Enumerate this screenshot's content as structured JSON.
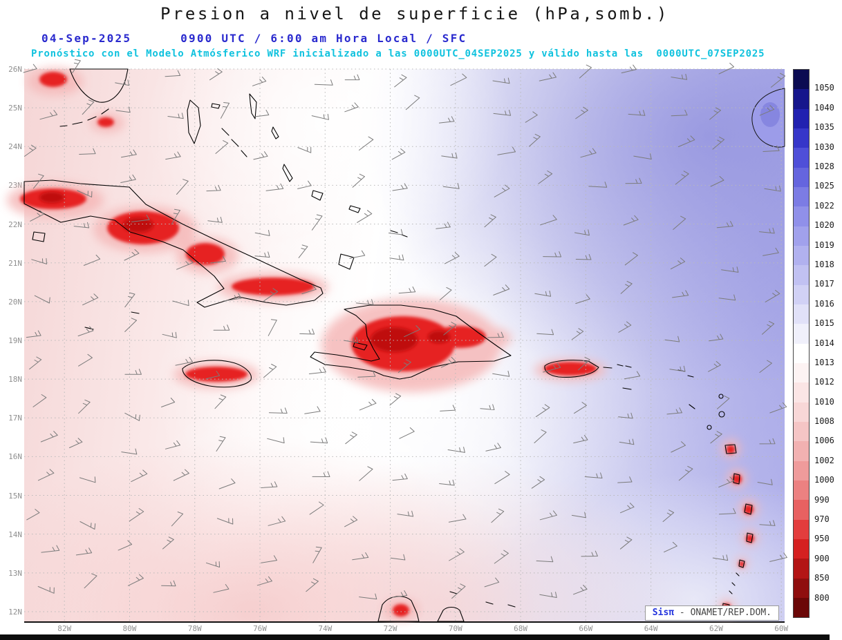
{
  "header": {
    "title": "Presion a nivel de superficie (hPa,somb.)",
    "datetime_line": "04-Sep-2025      0900 UTC / 6:00 am Hora Local / SFC",
    "forecast_line": "Pronóstico con el Modelo Atmósferico WRF inicializado a las 0000UTC_04SEP2025 y válido hasta las  0000UTC_07SEP2025"
  },
  "map": {
    "lat_labels": [
      "26N",
      "25N",
      "24N",
      "23N",
      "22N",
      "21N",
      "20N",
      "19N",
      "18N",
      "17N",
      "16N",
      "15N",
      "14N",
      "13N",
      "12N"
    ],
    "lon_labels": [
      "82W",
      "80W",
      "78W",
      "76W",
      "74W",
      "72W",
      "70W",
      "68W",
      "66W",
      "64W",
      "62W",
      "60W"
    ]
  },
  "colorbar": {
    "unit": "hPa",
    "labels": [
      "1050",
      "1040",
      "1035",
      "1030",
      "1028",
      "1025",
      "1022",
      "1020",
      "1019",
      "1018",
      "1017",
      "1016",
      "1015",
      "1014",
      "1013",
      "1012",
      "1010",
      "1008",
      "1006",
      "1002",
      "1000",
      "990",
      "970",
      "950",
      "900",
      "850",
      "800"
    ],
    "colors": [
      "#0b0b52",
      "#16168c",
      "#2121b0",
      "#3636c9",
      "#4f4fd8",
      "#6565de",
      "#7c7ce4",
      "#9090e9",
      "#a1a1ec",
      "#b1b1ef",
      "#c1c1f2",
      "#d1d1f5",
      "#e1e1f8",
      "#f0f0fb",
      "#ffffff",
      "#fdf3f3",
      "#fbe5e5",
      "#f8d7d7",
      "#f5c5c5",
      "#f2b1b1",
      "#ef9b9b",
      "#ec8181",
      "#e86161",
      "#e33d3d",
      "#d52020",
      "#b31515",
      "#8f0e0e",
      "#6b0707"
    ]
  },
  "watermark": {
    "brand": "Sisπ",
    "text": " - ONAMET/REP.DOM."
  }
}
